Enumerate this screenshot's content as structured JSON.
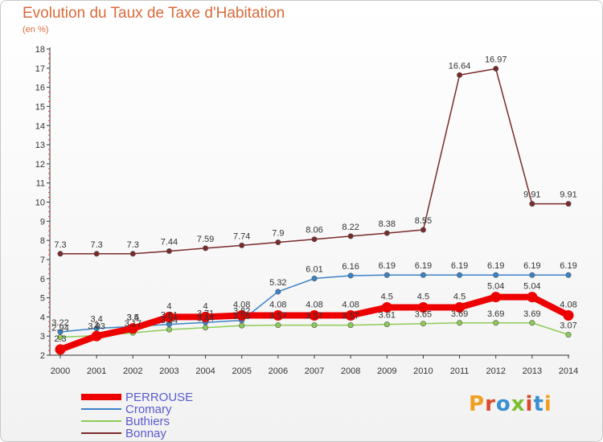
{
  "title": "Evolution du Taux de Taxe d'Habitation",
  "subtitle": "(en %)",
  "logo": {
    "text": "Proxiti",
    "colors": [
      "#f0a020",
      "#d94a2a",
      "#3a8fd0",
      "#7bbf30",
      "#d94a2a",
      "#3a8fd0",
      "#f0a020"
    ]
  },
  "chart_data": {
    "type": "line",
    "title": "Evolution du Taux de Taxe d'Habitation",
    "subtitle": "(en %)",
    "x": [
      "2000",
      "2001",
      "2002",
      "2003",
      "2004",
      "2005",
      "2006",
      "2007",
      "2008",
      "2009",
      "2010",
      "2011",
      "2012",
      "2013",
      "2014"
    ],
    "ylim": [
      2,
      18
    ],
    "yticks": [
      "2",
      "3",
      "4",
      "5",
      "6",
      "7",
      "8",
      "9",
      "10",
      "11",
      "12",
      "13",
      "14",
      "15",
      "16",
      "17",
      "18"
    ],
    "grid": false,
    "legend_position": "bottom-left",
    "series": [
      {
        "name": "Bonnay",
        "color": "#7a2a2a",
        "values": [
          7.3,
          7.3,
          7.3,
          7.44,
          7.59,
          7.74,
          7.9,
          8.06,
          8.22,
          8.38,
          8.55,
          16.64,
          16.97,
          9.91,
          9.91
        ],
        "labels": [
          "7.3",
          "7.3",
          "7.3",
          "7.44",
          "7.59",
          "7.74",
          "7.9",
          "8.06",
          "8.22",
          "8.38",
          "8.55",
          "16.64",
          "16.97",
          "9.91",
          "9.91"
        ],
        "label_pos": "above",
        "width": 1.5
      },
      {
        "name": "Cromary",
        "color": "#3a82c8",
        "values": [
          3.22,
          3.4,
          3.5,
          3.61,
          3.71,
          3.82,
          5.32,
          6.01,
          6.16,
          6.19,
          6.19,
          6.19,
          6.19,
          6.19,
          6.19
        ],
        "labels": [
          "3.22",
          "3.4",
          "3.5",
          "3.61",
          "3.71",
          "3.82",
          "5.32",
          "6.01",
          "6.16",
          "6.19",
          "6.19",
          "6.19",
          "6.19",
          "6.19",
          "6.19"
        ],
        "label_pos": "above",
        "width": 1.5
      },
      {
        "name": "Buthiers",
        "color": "#8ccc55",
        "values": [
          2.94,
          3.03,
          3.17,
          3.34,
          3.44,
          3.55,
          3.57,
          3.57,
          3.57,
          3.61,
          3.65,
          3.69,
          3.69,
          3.69,
          3.07
        ],
        "labels": [
          "2.94",
          "3.03",
          "3.17",
          "3.34",
          "3.44",
          "3.55",
          "3.57",
          "3.57",
          "3.57",
          "3.61",
          "3.65",
          "3.69",
          "3.69",
          "3.69",
          "3.07"
        ],
        "label_pos": "above",
        "width": 1.5
      },
      {
        "name": "PERROUSE",
        "color": "#ee0000",
        "values": [
          2.3,
          3.0,
          3.4,
          4.0,
          4.0,
          4.08,
          4.08,
          4.08,
          4.08,
          4.5,
          4.5,
          4.5,
          5.04,
          5.04,
          4.08
        ],
        "labels": [
          "2.3",
          "3",
          "3.4",
          "4",
          "4",
          "4.08",
          "4.08",
          "4.08",
          "4.08",
          "4.5",
          "4.5",
          "4.5",
          "5.04",
          "5.04",
          "4.08"
        ],
        "label_pos": "above",
        "width": 8
      }
    ],
    "legend_order": [
      "PERROUSE",
      "Cromary",
      "Buthiers",
      "Bonnay"
    ]
  }
}
